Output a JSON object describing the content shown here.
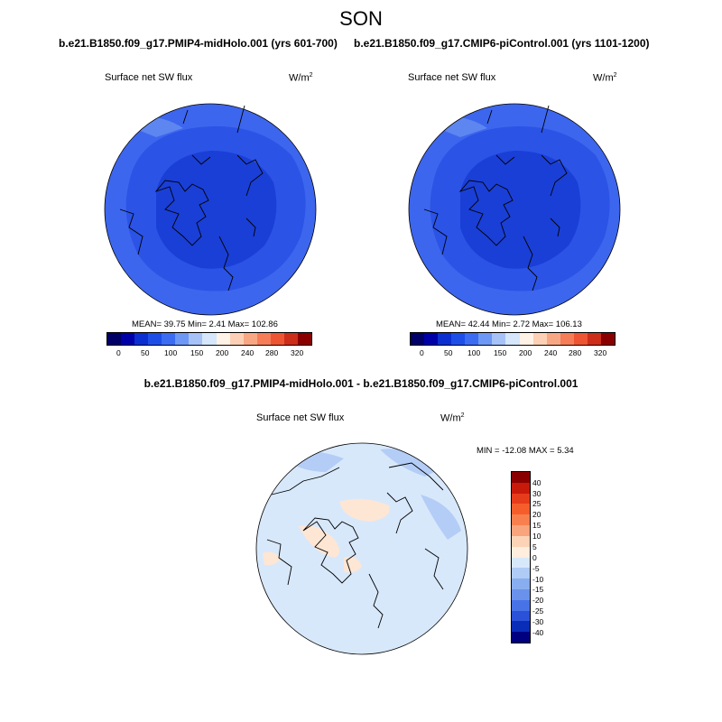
{
  "title": "SON",
  "panels": [
    {
      "title": "b.e21.B1850.f09_g17.PMIP4-midHolo.001 (yrs 601-700)",
      "left_label": "Surface net SW flux",
      "units_base": "W/m",
      "units_sup": "2",
      "stats": "MEAN=  39.75  Min=   2.41  Max= 102.86",
      "colorbar_ticks": [
        "0",
        "50",
        "100",
        "150",
        "200",
        "240",
        "280",
        "320"
      ]
    },
    {
      "title": "b.e21.B1850.f09_g17.CMIP6-piControl.001 (yrs 1101-1200)",
      "left_label": "Surface net SW flux",
      "units_base": "W/m",
      "units_sup": "2",
      "stats": "MEAN=  42.44  Min=   2.72  Max= 106.13",
      "colorbar_ticks": [
        "0",
        "50",
        "100",
        "150",
        "200",
        "240",
        "280",
        "320"
      ]
    },
    {
      "title": "b.e21.B1850.f09_g17.PMIP4-midHolo.001 - b.e21.B1850.f09_g17.CMIP6-piControl.001",
      "left_label": "Surface net SW flux",
      "units_base": "W/m",
      "units_sup": "2",
      "stats": "MIN = -12.08 MAX =   5.34",
      "colorbar_ticks": [
        "40",
        "30",
        "25",
        "20",
        "15",
        "10",
        "5",
        "0",
        "-5",
        "-10",
        "-15",
        "-20",
        "-25",
        "-30",
        "-40"
      ]
    }
  ],
  "colors": {
    "abs_scale": [
      "#000066",
      "#0000a8",
      "#0b2fd1",
      "#1d4fe8",
      "#3b6cf2",
      "#6d98f5",
      "#a6c2f7",
      "#d6e6fb",
      "#fff2e6",
      "#fcd0b4",
      "#f8a784",
      "#f57d58",
      "#ee5533",
      "#cc2e1a",
      "#8a0000"
    ],
    "diff_scale": [
      "#8a0000",
      "#c71a0a",
      "#e63c1c",
      "#f55e2b",
      "#f8804e",
      "#f9a47d",
      "#fcd3b6",
      "#ffeedd",
      "#d8e8fb",
      "#b0cbf5",
      "#88aef0",
      "#6a92ec",
      "#4773e6",
      "#2a51d8",
      "#0a2db8",
      "#000080"
    ],
    "map_deep": "#1a3fd6",
    "map_mid": "#2b53e6",
    "map_outer": "#3d66ee",
    "diff_bg": "#d8e8fb",
    "diff_neg": "#b3cdf6",
    "diff_pos": "#fde6d4"
  }
}
